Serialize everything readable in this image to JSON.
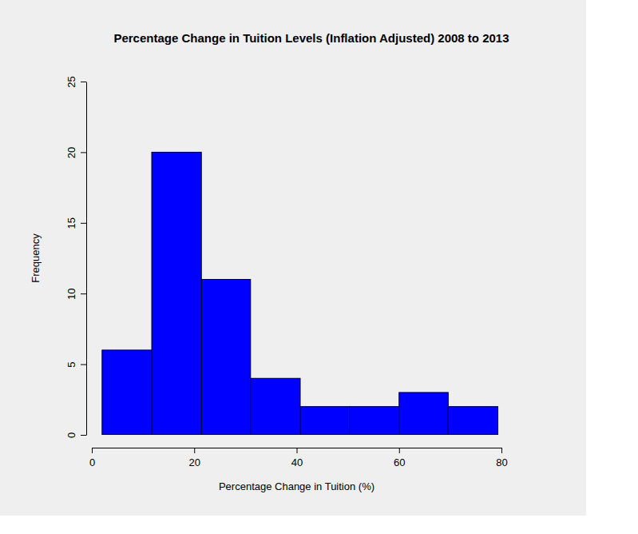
{
  "chart_data": {
    "type": "histogram",
    "title": "Percentage Change in Tuition Levels (Inflation Adjusted) 2008 to 2013",
    "x_label": "Percentage Change in Tuition (%)",
    "y_label": "Frequency",
    "bins": [
      2,
      11.7,
      21.4,
      31,
      40.7,
      50.3,
      60,
      69.6,
      79.3
    ],
    "counts": [
      6,
      20,
      11,
      4,
      2,
      2,
      3,
      2
    ],
    "color": "#0000ff",
    "xlim": [
      0,
      80
    ],
    "xticks": [
      0,
      20,
      40,
      60,
      80
    ],
    "ylim": [
      0,
      25
    ],
    "yticks": [
      0,
      5,
      10,
      15,
      20,
      25
    ]
  }
}
